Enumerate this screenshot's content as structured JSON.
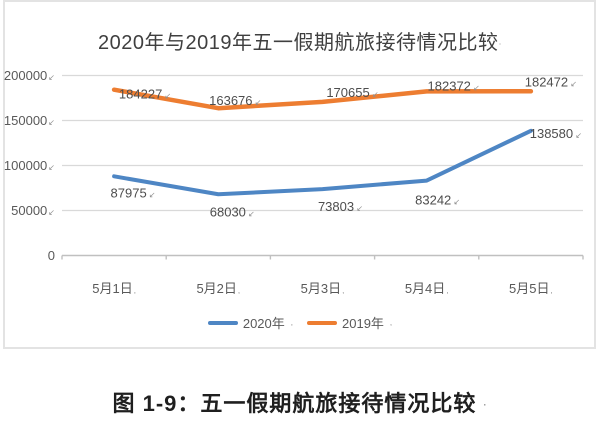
{
  "figure": {
    "caption": "图 1-9：五一假期航旅接待情况比较"
  },
  "marks": {
    "value_label": "↙",
    "axis_label": ",",
    "title": "·",
    "caption": "·"
  },
  "chart_data": {
    "type": "line",
    "title": "2020年与2019年五一假期航旅接待情况比较",
    "categories": [
      "5月1日",
      "5月2日",
      "5月3日",
      "5月4日",
      "5月5日"
    ],
    "series": [
      {
        "name": "2020年",
        "color": "#4E86C4",
        "values": [
          87975,
          68030,
          73803,
          83242,
          138580
        ]
      },
      {
        "name": "2019年",
        "color": "#ED7D31",
        "values": [
          184227,
          163676,
          170655,
          182372,
          182472
        ]
      }
    ],
    "ylim": [
      0,
      200000
    ],
    "yticks": [
      0,
      50000,
      100000,
      150000,
      200000
    ],
    "xlabel": "",
    "ylabel": "",
    "grid": true,
    "data_labels": true,
    "legend_position": "bottom",
    "colors": {
      "gridline": "#d9d9d9",
      "axis_line": "#c0c0c0",
      "tick_text": "#595959",
      "label_text": "#4d4d4d",
      "title_text": "#3f3f3f",
      "caption_text": "#1f1f1f",
      "frame_border": "#e3e3e3"
    }
  }
}
